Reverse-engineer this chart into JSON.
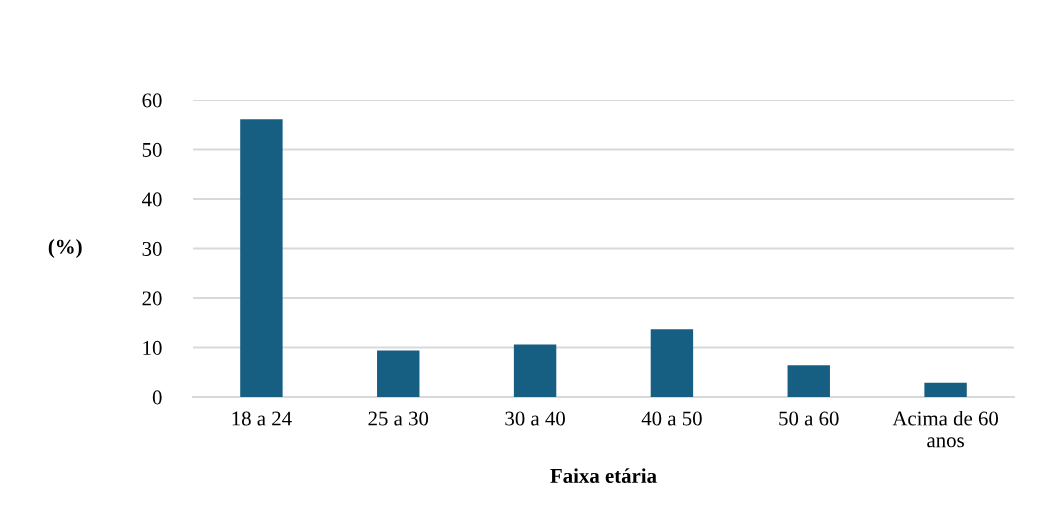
{
  "chart_data": {
    "type": "bar",
    "xlabel": "Faixa etária",
    "ylabel": "(%)",
    "categories": [
      "18 a 24",
      "25 a 30",
      "30 a 40",
      "40 a 50",
      "50 a 60",
      "Acima de 60\nanos"
    ],
    "values": [
      56.1,
      9.4,
      10.6,
      13.7,
      6.4,
      2.9
    ],
    "color": "#175f82",
    "ylim": [
      0,
      60
    ],
    "yticks": [
      0,
      10,
      20,
      30,
      40,
      50,
      60
    ],
    "grid": "y",
    "legend": false
  }
}
